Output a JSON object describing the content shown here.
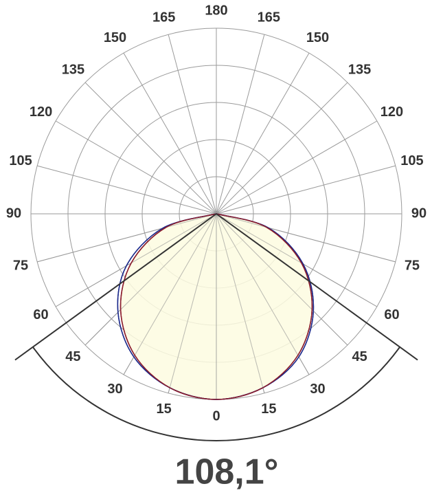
{
  "chart_data": {
    "type": "polar",
    "angle_ticks": [
      0,
      15,
      30,
      45,
      60,
      75,
      90,
      105,
      120,
      135,
      150,
      165,
      180
    ],
    "rlim": [
      0,
      100
    ],
    "rticks": [
      20,
      40,
      60,
      80,
      100
    ],
    "grid": true,
    "angles": [
      -90,
      -75,
      -60,
      -45,
      -30,
      -15,
      0,
      15,
      30,
      45,
      60,
      75,
      90
    ],
    "fill": "#fdfbe1",
    "series": [
      {
        "color": "#8b1c2c",
        "values": [
          0,
          28,
          53,
          73,
          88,
          97,
          100,
          97,
          88,
          73,
          53,
          28,
          0
        ]
      },
      {
        "color": "#1c2a8b",
        "values": [
          0,
          30,
          56,
          75,
          89,
          97,
          100,
          97,
          89,
          74,
          54,
          29,
          0
        ]
      }
    ],
    "beam_angle": 108.1,
    "beam_angle_label": "108,1°"
  }
}
